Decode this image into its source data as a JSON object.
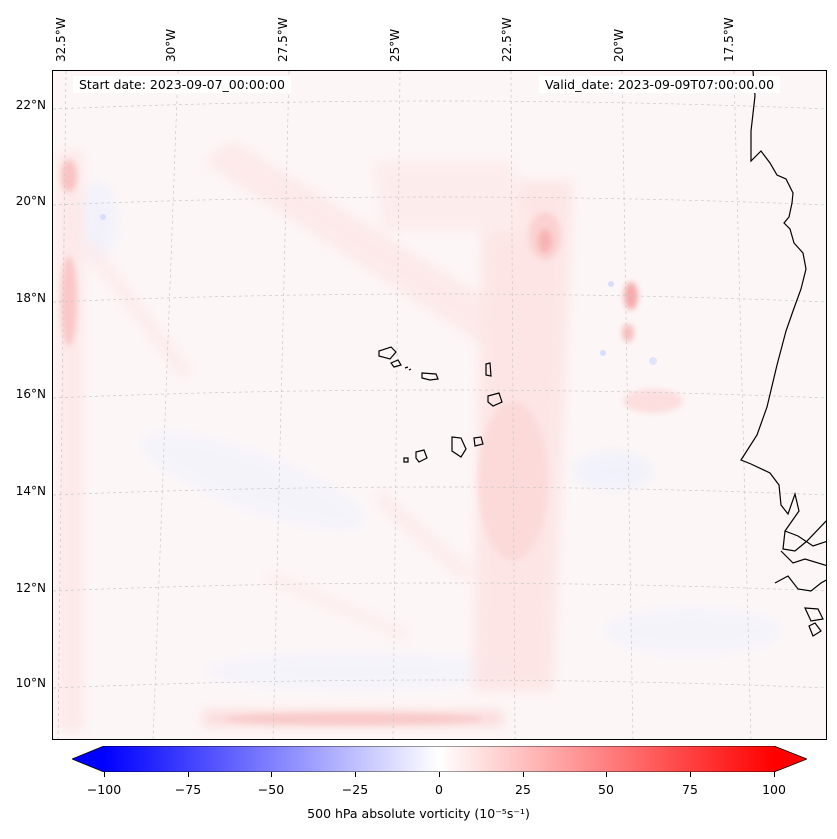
{
  "map": {
    "longitude_labels": [
      "32.5°W",
      "30°W",
      "27.5°W",
      "25°W",
      "22.5°W",
      "20°W",
      "17.5°W"
    ],
    "latitude_labels": [
      "22°N",
      "20°N",
      "18°N",
      "16°N",
      "14°N",
      "12°N",
      "10°N"
    ],
    "start_date": "Start date: 2023-09-07_00:00:00",
    "valid_date": "Valid_date: 2023-09-09T07:00:00.00",
    "colorbar": {
      "ticks": [
        "−100",
        "−75",
        "−50",
        "−25",
        "0",
        "25",
        "50",
        "75",
        "100"
      ],
      "label": "500 hPa absolute vorticity (10⁻⁵s⁻¹)",
      "min_color": "#0000ff",
      "mid_color": "#ffffff",
      "max_color": "#ff0000"
    }
  }
}
